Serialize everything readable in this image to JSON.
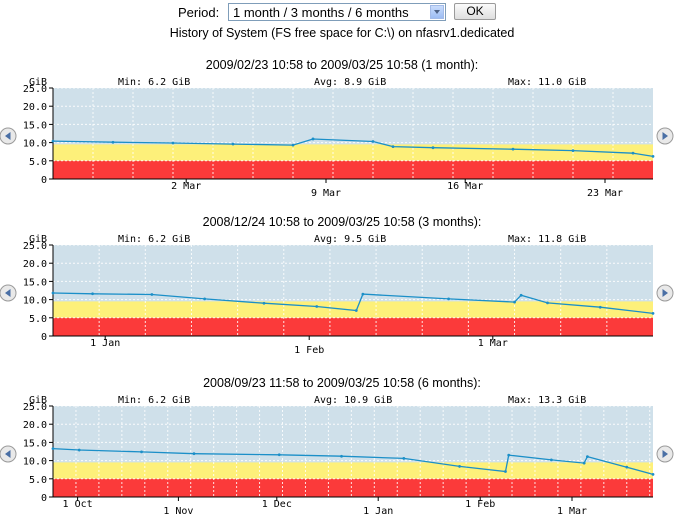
{
  "form": {
    "period_label": "Period:",
    "period_value": "1 month / 3 months / 6 months",
    "ok_label": "OK"
  },
  "history_title": "History of System (FS free space for C:\\) on nfasrv1.dedicated",
  "colors": {
    "plot_bg": "#cfe0ea",
    "warning_band": "#fdf07a",
    "critical_band": "#fb3a3a",
    "line": "#1b8fc8",
    "axis_text": "#000000"
  },
  "nav_icons": {
    "left": "left-arrow-icon",
    "right": "right-arrow-icon"
  },
  "charts": [
    {
      "title": "2009/02/23 10:58 to 2009/03/25 10:58 (1 month):",
      "unit": "GiB",
      "min": "Min: 6.2 GiB",
      "avg": "Avg: 8.9 GiB",
      "max": "Max: 11.0 GiB",
      "yticks": [
        "25.0",
        "20.0",
        "15.0",
        "10.0",
        "5.0",
        "0"
      ],
      "xlabels": [
        {
          "t": "2 Mar",
          "f": 0.222,
          "low": false
        },
        {
          "t": "9 Mar",
          "f": 0.455,
          "low": true
        },
        {
          "t": "16 Mar",
          "f": 0.687,
          "low": false
        },
        {
          "t": "23 Mar",
          "f": 0.92,
          "low": true
        }
      ]
    },
    {
      "title": "2008/12/24 10:58 to 2009/03/25 10:58 (3 months):",
      "unit": "GiB",
      "min": "Min: 6.2 GiB",
      "avg": "Avg: 9.5 GiB",
      "max": "Max: 11.8 GiB",
      "yticks": [
        "25.0",
        "20.0",
        "15.0",
        "10.0",
        "5.0",
        "0"
      ],
      "xlabels": [
        {
          "t": "1 Jan",
          "f": 0.087,
          "low": false
        },
        {
          "t": "1 Feb",
          "f": 0.427,
          "low": true
        },
        {
          "t": "1 Mar",
          "f": 0.733,
          "low": false
        }
      ]
    },
    {
      "title": "2008/09/23 11:58 to 2009/03/25 10:58 (6 months):",
      "unit": "GiB",
      "min": "Min: 6.2 GiB",
      "avg": "Avg: 10.9 GiB",
      "max": "Max: 13.3 GiB",
      "yticks": [
        "25.0",
        "20.0",
        "15.0",
        "10.0",
        "5.0",
        "0"
      ],
      "xlabels": [
        {
          "t": "1 Oct",
          "f": 0.041,
          "low": false
        },
        {
          "t": "1 Nov",
          "f": 0.209,
          "low": true
        },
        {
          "t": "1 Dec",
          "f": 0.373,
          "low": false
        },
        {
          "t": "1 Jan",
          "f": 0.542,
          "low": true
        },
        {
          "t": "1 Feb",
          "f": 0.712,
          "low": false
        },
        {
          "t": "1 Mar",
          "f": 0.865,
          "low": true
        }
      ]
    }
  ],
  "chart_data": [
    {
      "type": "line",
      "title": "2009/02/23 10:58 to 2009/03/25 10:58 (1 month):",
      "ylabel": "GiB",
      "ylim": [
        0,
        25
      ],
      "xlim": [
        "2009-02-23",
        "2009-03-25"
      ],
      "thresholds": {
        "critical_below": 5.0,
        "warning_below": 9.5
      },
      "series": [
        {
          "name": "",
          "x": [
            "2009-02-23",
            "2009-02-26",
            "2009-03-01",
            "2009-03-04",
            "2009-03-07",
            "2009-03-08",
            "2009-03-11",
            "2009-03-12",
            "2009-03-14",
            "2009-03-18",
            "2009-03-21",
            "2009-03-24",
            "2009-03-25"
          ],
          "values": [
            10.4,
            10.1,
            9.9,
            9.6,
            9.3,
            11.0,
            10.3,
            8.9,
            8.6,
            8.2,
            7.8,
            7.1,
            6.2
          ]
        }
      ]
    },
    {
      "type": "line",
      "title": "2008/12/24 10:58 to 2009/03/25 10:58 (3 months):",
      "ylabel": "GiB",
      "ylim": [
        0,
        25
      ],
      "xlim": [
        "2008-12-24",
        "2009-03-25"
      ],
      "thresholds": {
        "critical_below": 5.0,
        "warning_below": 9.5
      },
      "series": [
        {
          "name": "",
          "x": [
            "2008-12-24",
            "2008-12-30",
            "2009-01-08",
            "2009-01-16",
            "2009-01-25",
            "2009-02-02",
            "2009-02-08",
            "2009-02-09",
            "2009-02-22",
            "2009-03-04",
            "2009-03-05",
            "2009-03-09",
            "2009-03-17",
            "2009-03-25"
          ],
          "values": [
            11.8,
            11.6,
            11.4,
            10.2,
            9.0,
            8.1,
            7.0,
            11.5,
            10.2,
            9.3,
            11.2,
            9.1,
            7.9,
            6.2
          ]
        }
      ]
    },
    {
      "type": "line",
      "title": "2008/09/23 11:58 to 2009/03/25 10:58 (6 months):",
      "ylabel": "GiB",
      "ylim": [
        0,
        25
      ],
      "xlim": [
        "2008-09-23",
        "2009-03-25"
      ],
      "thresholds": {
        "critical_below": 5.0,
        "warning_below": 9.5
      },
      "series": [
        {
          "name": "",
          "x": [
            "2008-09-23",
            "2008-10-01",
            "2008-10-20",
            "2008-11-05",
            "2008-12-01",
            "2008-12-20",
            "2009-01-08",
            "2009-01-25",
            "2009-02-08",
            "2009-02-09",
            "2009-02-22",
            "2009-03-04",
            "2009-03-05",
            "2009-03-17",
            "2009-03-25"
          ],
          "values": [
            13.3,
            12.9,
            12.4,
            11.9,
            11.6,
            11.2,
            10.6,
            8.4,
            7.0,
            11.5,
            10.2,
            9.3,
            11.1,
            8.2,
            6.2
          ]
        }
      ]
    }
  ]
}
